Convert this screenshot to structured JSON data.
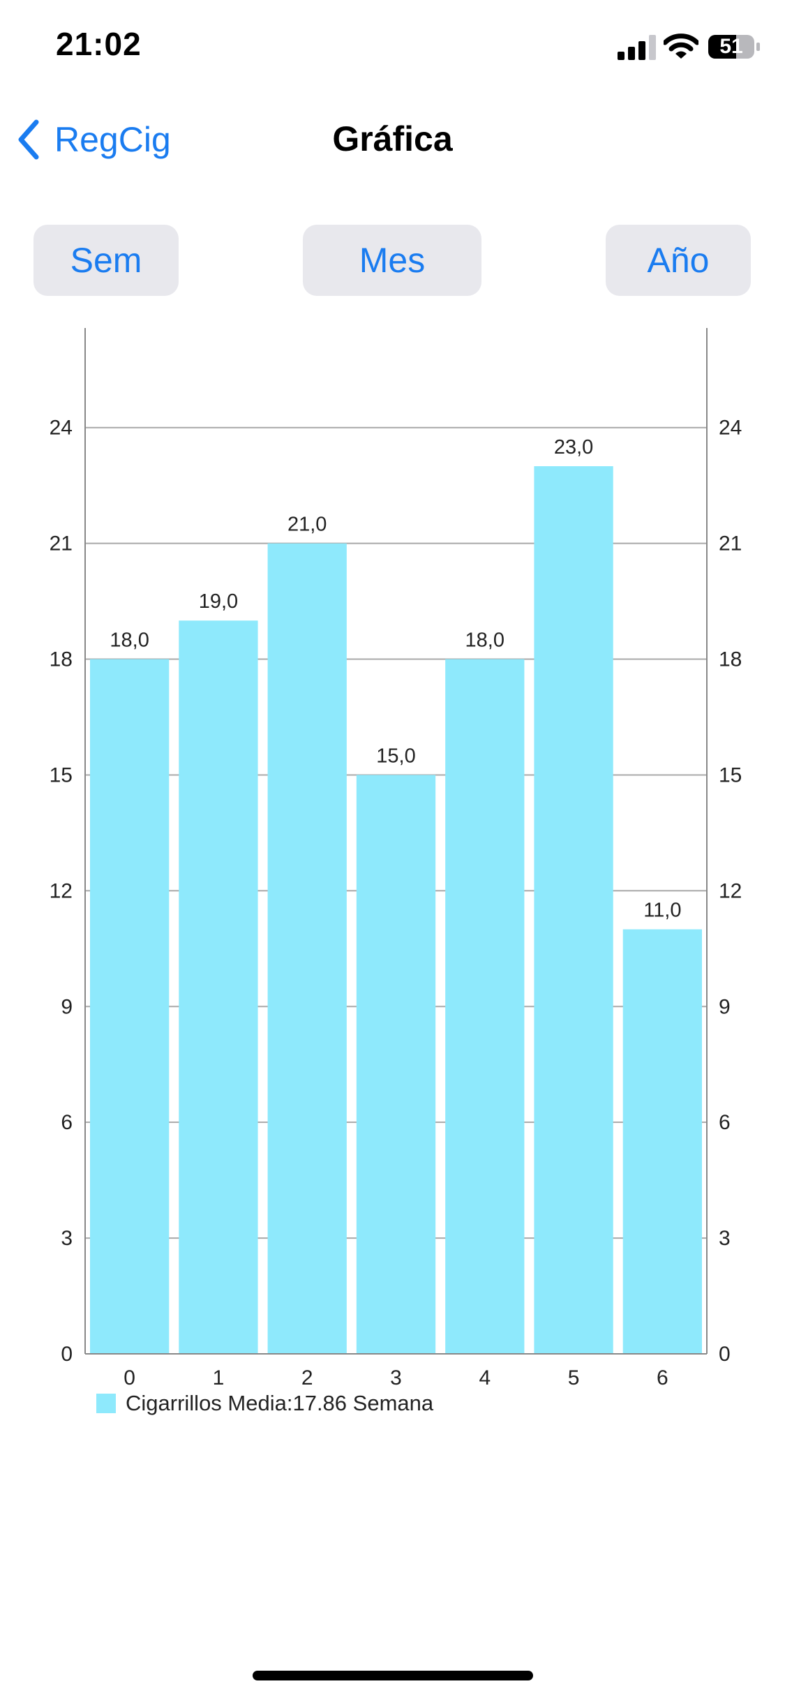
{
  "status_bar": {
    "time": "21:02",
    "battery": "51",
    "icons": [
      "signal-icon",
      "wifi-icon",
      "battery-icon"
    ]
  },
  "nav": {
    "back_label": "RegCig",
    "title": "Gráfica"
  },
  "range_buttons": {
    "week": "Sem",
    "month": "Mes",
    "year": "Año"
  },
  "colors": {
    "accent": "#1a7cf0",
    "bar": "#8ee9fc",
    "button_bg": "#e8e8ed"
  },
  "chart_data": {
    "type": "bar",
    "categories": [
      "0",
      "1",
      "2",
      "3",
      "4",
      "5",
      "6"
    ],
    "values": [
      18,
      19,
      21,
      15,
      18,
      23,
      11
    ],
    "value_labels": [
      "18,0",
      "19,0",
      "21,0",
      "15,0",
      "18,0",
      "23,0",
      "11,0"
    ],
    "ylim": [
      0,
      26.4
    ],
    "yticks": [
      0,
      3,
      6,
      9,
      12,
      15,
      18,
      21,
      24
    ],
    "dual_y_axis": true,
    "grid": true,
    "legend": {
      "label": "Cigarrillos Media:17.86 Semana",
      "position": "bottom-left"
    },
    "title": "",
    "xlabel": "",
    "ylabel": ""
  }
}
